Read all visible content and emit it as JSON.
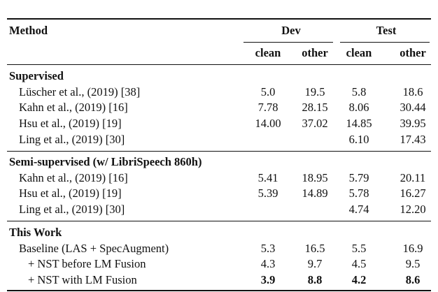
{
  "header": {
    "method": "Method",
    "dev": "Dev",
    "test": "Test",
    "sub": [
      "clean",
      "other",
      "clean",
      "other"
    ]
  },
  "sections": [
    {
      "title": "Supervised",
      "rows": [
        {
          "method": "Lüscher et al., (2019) [38]",
          "values": [
            "5.0",
            "19.5",
            "5.8",
            "18.6"
          ]
        },
        {
          "method": "Kahn et al., (2019) [16]",
          "values": [
            "7.78",
            "28.15",
            "8.06",
            "30.44"
          ]
        },
        {
          "method": "Hsu et al., (2019) [19]",
          "values": [
            "14.00",
            "37.02",
            "14.85",
            "39.95"
          ]
        },
        {
          "method": "Ling et al., (2019) [30]",
          "values": [
            "",
            "",
            "6.10",
            "17.43"
          ]
        }
      ]
    },
    {
      "title": "Semi-supervised (w/ LibriSpeech 860h)",
      "rows": [
        {
          "method": "Kahn et al., (2019) [16]",
          "values": [
            "5.41",
            "18.95",
            "5.79",
            "20.11"
          ]
        },
        {
          "method": "Hsu et al., (2019) [19]",
          "values": [
            "5.39",
            "14.89",
            "5.78",
            "16.27"
          ]
        },
        {
          "method": "Ling et al., (2019) [30]",
          "values": [
            "",
            "",
            "4.74",
            "12.20"
          ]
        }
      ]
    },
    {
      "title": "This Work",
      "rows": [
        {
          "method": "Baseline (LAS + SpecAugment)",
          "values": [
            "5.3",
            "16.5",
            "5.5",
            "16.9"
          ]
        },
        {
          "method": "+ NST before LM Fusion",
          "values": [
            "4.3",
            "9.7",
            "4.5",
            "9.5"
          ]
        },
        {
          "method": "+ NST with LM Fusion",
          "values": [
            "3.9",
            "8.8",
            "4.2",
            "8.6"
          ],
          "bold": true
        }
      ]
    }
  ]
}
